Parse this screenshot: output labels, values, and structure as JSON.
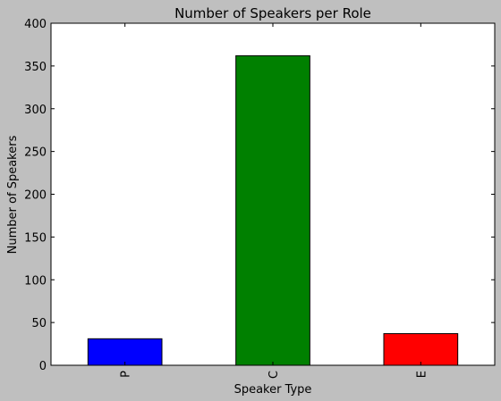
{
  "chart_data": {
    "type": "bar",
    "title": "Number of Speakers per Role",
    "xlabel": "Speaker Type",
    "ylabel": "Number of Speakers",
    "categories": [
      "P",
      "C",
      "E"
    ],
    "values": [
      31,
      362,
      37
    ],
    "colors": [
      "#0000ff",
      "#008000",
      "#ff0000"
    ],
    "ylim": [
      0,
      400
    ],
    "yticks": [
      0,
      50,
      100,
      150,
      200,
      250,
      300,
      350,
      400
    ],
    "grid": false,
    "legend": "none",
    "background": "#bfbfbf",
    "plot_background": "#ffffff"
  }
}
